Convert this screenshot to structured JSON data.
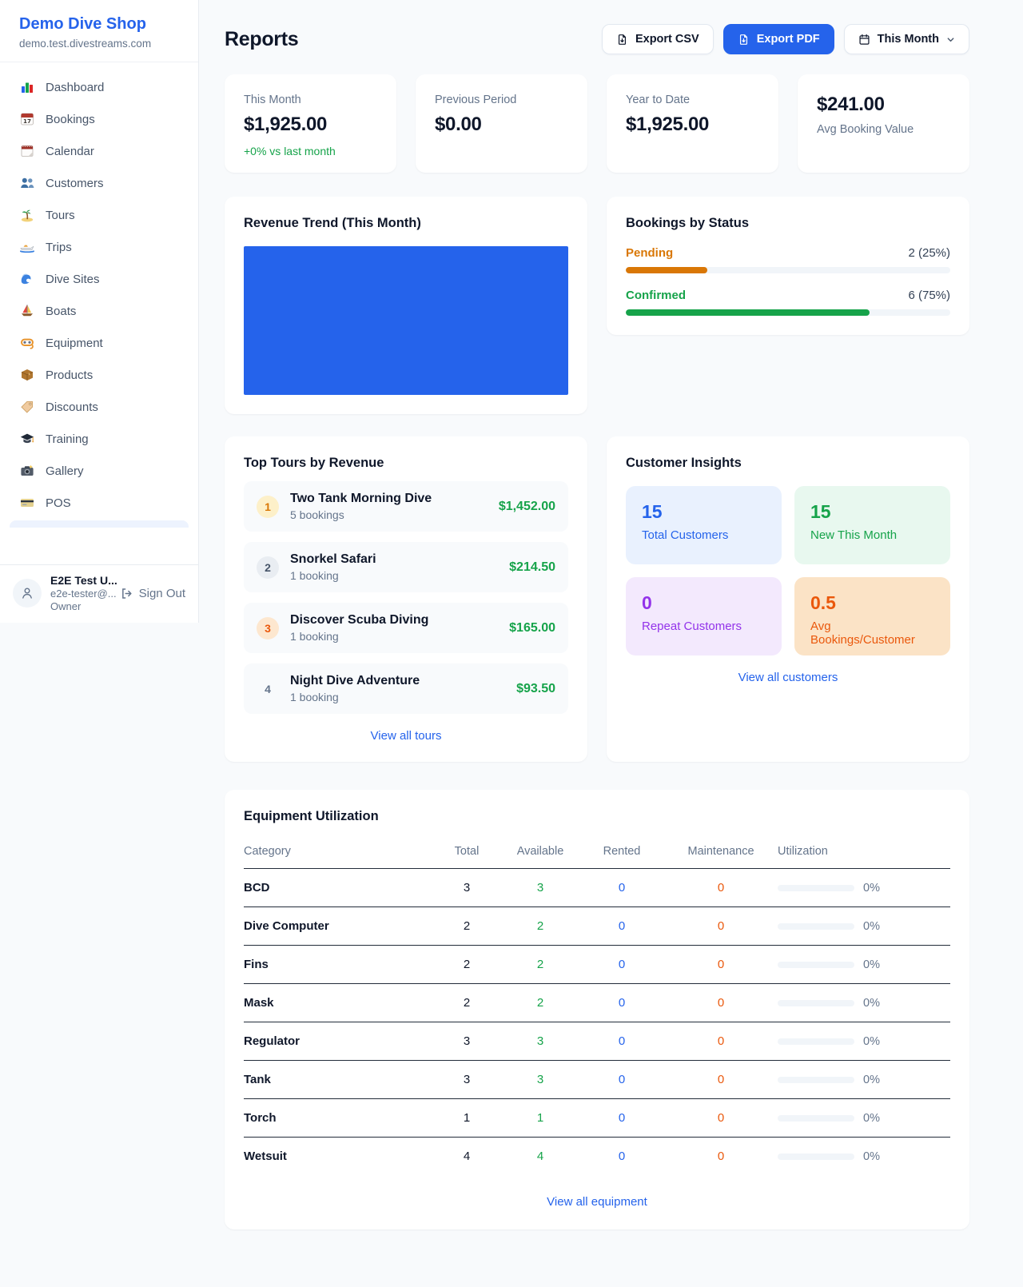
{
  "colors": {
    "accent": "#2563eb",
    "positive_green": "#16a34a",
    "pending_orange": "#d97706",
    "maintenance_orange": "#ea580c",
    "purple": "#9333ea"
  },
  "sidebar": {
    "brand": {
      "name": "Demo Dive Shop",
      "domain": "demo.test.divestreams.com"
    },
    "nav": [
      {
        "label": "Dashboard",
        "icon": "bar-chart-icon"
      },
      {
        "label": "Bookings",
        "icon": "calendar-date-icon"
      },
      {
        "label": "Calendar",
        "icon": "calendar-icon"
      },
      {
        "label": "Customers",
        "icon": "people-icon"
      },
      {
        "label": "Tours",
        "icon": "palm-island-icon"
      },
      {
        "label": "Trips",
        "icon": "speedboat-icon"
      },
      {
        "label": "Dive Sites",
        "icon": "wave-icon"
      },
      {
        "label": "Boats",
        "icon": "sailboat-icon"
      },
      {
        "label": "Equipment",
        "icon": "diving-mask-icon"
      },
      {
        "label": "Products",
        "icon": "package-icon"
      },
      {
        "label": "Discounts",
        "icon": "tag-icon"
      },
      {
        "label": "Training",
        "icon": "graduation-cap-icon"
      },
      {
        "label": "Gallery",
        "icon": "camera-icon"
      },
      {
        "label": "POS",
        "icon": "credit-card-icon"
      }
    ],
    "user": {
      "name": "E2E Test U...",
      "email": "e2e-tester@...",
      "role": "Owner",
      "sign_out_label": "Sign Out"
    }
  },
  "header": {
    "title": "Reports",
    "export_csv_label": "Export CSV",
    "export_pdf_label": "Export PDF",
    "period_selector": "This Month"
  },
  "stats": [
    {
      "label": "This Month",
      "value": "$1,925.00",
      "delta": "+0% vs last month"
    },
    {
      "label": "Previous Period",
      "value": "$0.00"
    },
    {
      "label": "Year to Date",
      "value": "$1,925.00"
    },
    {
      "label": "Avg Booking Value",
      "value": "$241.00"
    }
  ],
  "revenue_trend": {
    "title": "Revenue Trend (This Month)",
    "bar_color": "#2563eb"
  },
  "bookings_by_status": {
    "title": "Bookings by Status",
    "rows": [
      {
        "label": "Pending",
        "value": "2 (25%)",
        "pct": 25
      },
      {
        "label": "Confirmed",
        "value": "6 (75%)",
        "pct": 75
      }
    ]
  },
  "top_tours": {
    "title": "Top Tours by Revenue",
    "items": [
      {
        "rank": "1",
        "name": "Two Tank Morning Dive",
        "bookings": "5 bookings",
        "revenue": "$1,452.00"
      },
      {
        "rank": "2",
        "name": "Snorkel Safari",
        "bookings": "1 booking",
        "revenue": "$214.50"
      },
      {
        "rank": "3",
        "name": "Discover Scuba Diving",
        "bookings": "1 booking",
        "revenue": "$165.00"
      },
      {
        "rank": "4",
        "name": "Night Dive Adventure",
        "bookings": "1 booking",
        "revenue": "$93.50"
      }
    ],
    "view_all": "View all tours"
  },
  "customer_insights": {
    "title": "Customer Insights",
    "tiles": [
      {
        "value": "15",
        "label": "Total Customers"
      },
      {
        "value": "15",
        "label": "New This Month"
      },
      {
        "value": "0",
        "label": "Repeat Customers"
      },
      {
        "value": "0.5",
        "label": "Avg Bookings/Customer"
      }
    ],
    "view_all": "View all customers"
  },
  "equipment": {
    "title": "Equipment Utilization",
    "columns": [
      "Category",
      "Total",
      "Available",
      "Rented",
      "Maintenance",
      "Utilization"
    ],
    "rows": [
      {
        "category": "BCD",
        "total": "3",
        "available": "3",
        "rented": "0",
        "maintenance": "0",
        "utilization": "0%",
        "pct": 0
      },
      {
        "category": "Dive Computer",
        "total": "2",
        "available": "2",
        "rented": "0",
        "maintenance": "0",
        "utilization": "0%",
        "pct": 0
      },
      {
        "category": "Fins",
        "total": "2",
        "available": "2",
        "rented": "0",
        "maintenance": "0",
        "utilization": "0%",
        "pct": 0
      },
      {
        "category": "Mask",
        "total": "2",
        "available": "2",
        "rented": "0",
        "maintenance": "0",
        "utilization": "0%",
        "pct": 0
      },
      {
        "category": "Regulator",
        "total": "3",
        "available": "3",
        "rented": "0",
        "maintenance": "0",
        "utilization": "0%",
        "pct": 0
      },
      {
        "category": "Tank",
        "total": "3",
        "available": "3",
        "rented": "0",
        "maintenance": "0",
        "utilization": "0%",
        "pct": 0
      },
      {
        "category": "Torch",
        "total": "1",
        "available": "1",
        "rented": "0",
        "maintenance": "0",
        "utilization": "0%",
        "pct": 0
      },
      {
        "category": "Wetsuit",
        "total": "4",
        "available": "4",
        "rented": "0",
        "maintenance": "0",
        "utilization": "0%",
        "pct": 0
      }
    ],
    "view_all": "View all equipment"
  }
}
